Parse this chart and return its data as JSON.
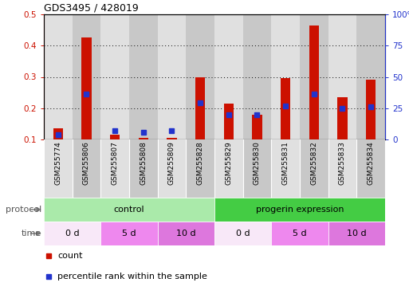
{
  "title": "GDS3495 / 428019",
  "samples": [
    "GSM255774",
    "GSM255806",
    "GSM255807",
    "GSM255808",
    "GSM255809",
    "GSM255828",
    "GSM255829",
    "GSM255830",
    "GSM255831",
    "GSM255832",
    "GSM255833",
    "GSM255834"
  ],
  "red_values": [
    0.135,
    0.425,
    0.115,
    0.105,
    0.105,
    0.3,
    0.215,
    0.18,
    0.295,
    0.465,
    0.235,
    0.29
  ],
  "blue_values": [
    0.115,
    0.245,
    0.128,
    0.122,
    0.127,
    0.218,
    0.18,
    0.178,
    0.208,
    0.245,
    0.2,
    0.205
  ],
  "ylim_left": [
    0.1,
    0.5
  ],
  "ylim_right": [
    0,
    100
  ],
  "yticks_left": [
    0.1,
    0.2,
    0.3,
    0.4,
    0.5
  ],
  "ytick_labels_left": [
    "0.1",
    "0.2",
    "0.3",
    "0.4",
    "0.5"
  ],
  "yticks_right": [
    0,
    25,
    50,
    75,
    100
  ],
  "ytick_labels_right": [
    "0",
    "25",
    "50",
    "75",
    "100%"
  ],
  "protocol_groups": [
    {
      "text": "control",
      "start": 0,
      "end": 5,
      "color": "#AAEAAA"
    },
    {
      "text": "progerin expression",
      "start": 6,
      "end": 11,
      "color": "#44CC44"
    }
  ],
  "time_groups": [
    {
      "text": "0 d",
      "start": 0,
      "end": 1,
      "color": "#F8E8F8"
    },
    {
      "text": "5 d",
      "start": 2,
      "end": 3,
      "color": "#EE88EE"
    },
    {
      "text": "10 d",
      "start": 4,
      "end": 5,
      "color": "#DD77DD"
    },
    {
      "text": "0 d",
      "start": 6,
      "end": 7,
      "color": "#F8E8F8"
    },
    {
      "text": "5 d",
      "start": 8,
      "end": 9,
      "color": "#EE88EE"
    },
    {
      "text": "10 d",
      "start": 10,
      "end": 11,
      "color": "#DD77DD"
    }
  ],
  "red_color": "#CC1100",
  "blue_color": "#2233CC",
  "bg_colors": [
    "#E0E0E0",
    "#C8C8C8"
  ],
  "tick_color_left": "#CC1100",
  "tick_color_right": "#2233CC",
  "bar_width": 0.35,
  "marker_size": 4
}
